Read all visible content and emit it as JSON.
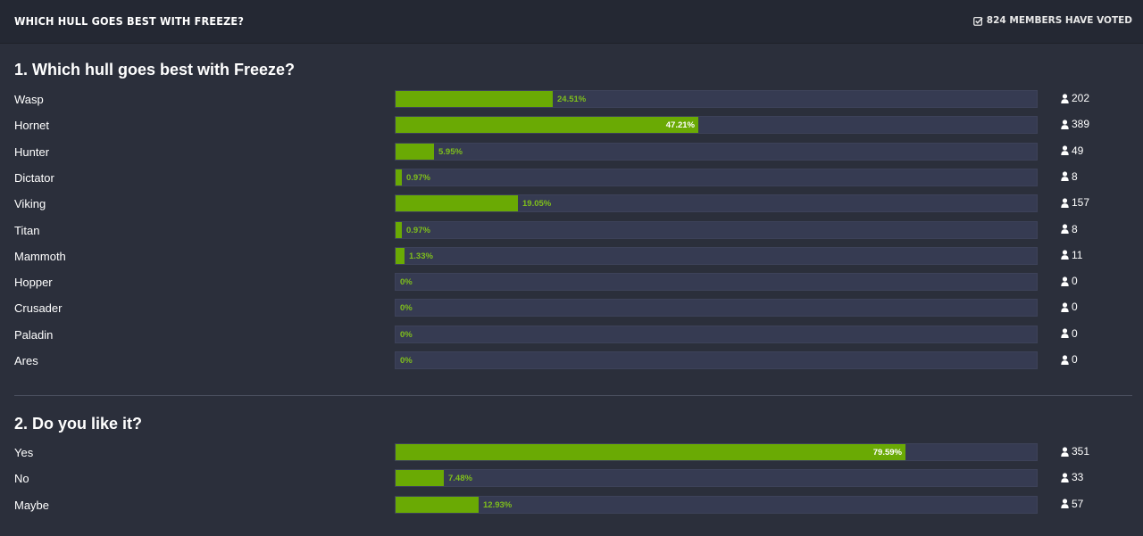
{
  "header": {
    "title": "Which hull goes best with Freeze?",
    "votes_text": "824 members have voted"
  },
  "questions": [
    {
      "title": "1. Which hull goes best with Freeze?",
      "options": [
        {
          "label": "Wasp",
          "percent_text": "24.51%",
          "percent": 24.51,
          "count": "202"
        },
        {
          "label": "Hornet",
          "percent_text": "47.21%",
          "percent": 47.21,
          "count": "389"
        },
        {
          "label": "Hunter",
          "percent_text": "5.95%",
          "percent": 5.95,
          "count": "49"
        },
        {
          "label": "Dictator",
          "percent_text": "0.97%",
          "percent": 0.97,
          "count": "8"
        },
        {
          "label": "Viking",
          "percent_text": "19.05%",
          "percent": 19.05,
          "count": "157"
        },
        {
          "label": "Titan",
          "percent_text": "0.97%",
          "percent": 0.97,
          "count": "8"
        },
        {
          "label": "Mammoth",
          "percent_text": "1.33%",
          "percent": 1.33,
          "count": "11"
        },
        {
          "label": "Hopper",
          "percent_text": "0%",
          "percent": 0,
          "count": "0"
        },
        {
          "label": "Crusader",
          "percent_text": "0%",
          "percent": 0,
          "count": "0"
        },
        {
          "label": "Paladin",
          "percent_text": "0%",
          "percent": 0,
          "count": "0"
        },
        {
          "label": "Ares",
          "percent_text": "0%",
          "percent": 0,
          "count": "0"
        }
      ]
    },
    {
      "title": "2. Do you like it?",
      "options": [
        {
          "label": "Yes",
          "percent_text": "79.59%",
          "percent": 79.59,
          "count": "351"
        },
        {
          "label": "No",
          "percent_text": "7.48%",
          "percent": 7.48,
          "count": "33"
        },
        {
          "label": "Maybe",
          "percent_text": "12.93%",
          "percent": 12.93,
          "count": "57"
        }
      ]
    }
  ],
  "colors": {
    "bar_fill": "#6aaa04",
    "bar_track": "#363b52",
    "background": "#2b2f3b",
    "header_background": "#242833"
  },
  "icons": {
    "votes": "check-square-icon",
    "voter": "user-icon"
  }
}
